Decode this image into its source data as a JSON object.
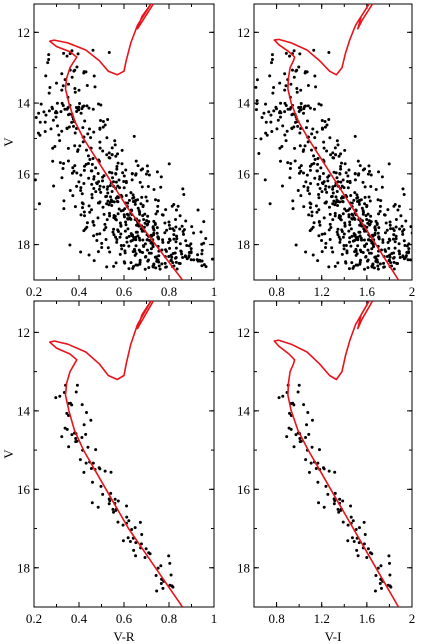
{
  "chart_data": [
    {
      "type": "scatter",
      "panel": "top-left",
      "xlabel": "",
      "ylabel": "V",
      "xlim": [
        0.2,
        1.0
      ],
      "ylim": [
        19,
        11.2
      ],
      "y_inverted": true,
      "xticks": [
        "0.2",
        "0.4",
        "0.6",
        "0.8",
        "1"
      ],
      "yticks": [
        "12",
        "14",
        "16",
        "18"
      ],
      "isochrone": [
        [
          0.86,
          19.0
        ],
        [
          0.8,
          18.5
        ],
        [
          0.74,
          18.0
        ],
        [
          0.68,
          17.5
        ],
        [
          0.62,
          17.0
        ],
        [
          0.57,
          16.5
        ],
        [
          0.52,
          16.0
        ],
        [
          0.47,
          15.5
        ],
        [
          0.42,
          15.0
        ],
        [
          0.38,
          14.5
        ],
        [
          0.355,
          14.0
        ],
        [
          0.34,
          13.6
        ],
        [
          0.345,
          13.3
        ],
        [
          0.36,
          13.0
        ],
        [
          0.38,
          12.8
        ],
        [
          0.39,
          12.7
        ],
        [
          0.36,
          12.55
        ],
        [
          0.3,
          12.4
        ],
        [
          0.27,
          12.25
        ],
        [
          0.29,
          12.22
        ],
        [
          0.35,
          12.3
        ],
        [
          0.43,
          12.5
        ],
        [
          0.49,
          12.8
        ],
        [
          0.53,
          13.1
        ],
        [
          0.57,
          13.2
        ],
        [
          0.6,
          13.1
        ],
        [
          0.61,
          12.8
        ],
        [
          0.63,
          12.3
        ],
        [
          0.66,
          11.8
        ],
        [
          0.7,
          11.4
        ],
        [
          0.72,
          11.2
        ],
        [
          0.68,
          11.55
        ],
        [
          0.66,
          11.9
        ],
        [
          0.68,
          11.7
        ],
        [
          0.71,
          11.4
        ],
        [
          0.73,
          11.2
        ]
      ]
    },
    {
      "type": "scatter",
      "panel": "top-right",
      "xlabel": "",
      "ylabel": "",
      "xlim": [
        0.6,
        2.0
      ],
      "ylim": [
        19,
        11.2
      ],
      "y_inverted": true,
      "xticks": [
        "0.8",
        "1.2",
        "1.6",
        "2"
      ],
      "yticks": [
        "12",
        "14",
        "16",
        "18"
      ],
      "isochrone": [
        [
          1.88,
          19.0
        ],
        [
          1.78,
          18.5
        ],
        [
          1.68,
          18.0
        ],
        [
          1.58,
          17.5
        ],
        [
          1.48,
          17.0
        ],
        [
          1.38,
          16.5
        ],
        [
          1.28,
          16.0
        ],
        [
          1.18,
          15.5
        ],
        [
          1.08,
          15.0
        ],
        [
          0.99,
          14.5
        ],
        [
          0.93,
          14.0
        ],
        [
          0.9,
          13.6
        ],
        [
          0.905,
          13.3
        ],
        [
          0.92,
          13.0
        ],
        [
          0.95,
          12.8
        ],
        [
          0.96,
          12.7
        ],
        [
          0.91,
          12.55
        ],
        [
          0.82,
          12.35
        ],
        [
          0.78,
          12.22
        ],
        [
          0.82,
          12.2
        ],
        [
          0.93,
          12.3
        ],
        [
          1.07,
          12.5
        ],
        [
          1.18,
          12.8
        ],
        [
          1.27,
          13.1
        ],
        [
          1.33,
          13.2
        ],
        [
          1.38,
          13.0
        ],
        [
          1.41,
          12.6
        ],
        [
          1.45,
          12.2
        ],
        [
          1.5,
          11.8
        ],
        [
          1.57,
          11.45
        ],
        [
          1.62,
          11.2
        ],
        [
          1.55,
          11.55
        ],
        [
          1.52,
          11.9
        ],
        [
          1.56,
          11.65
        ],
        [
          1.61,
          11.4
        ],
        [
          1.65,
          11.2
        ]
      ]
    },
    {
      "type": "scatter",
      "panel": "bottom-left",
      "xlabel": "V-R",
      "ylabel": "V",
      "xlim": [
        0.2,
        1.0
      ],
      "ylim": [
        19,
        11.2
      ],
      "y_inverted": true,
      "xticks": [
        "0.2",
        "0.4",
        "0.6",
        "0.8",
        "1"
      ],
      "yticks": [
        "12",
        "14",
        "16",
        "18"
      ],
      "isochrone": [
        [
          0.86,
          19.0
        ],
        [
          0.8,
          18.5
        ],
        [
          0.74,
          18.0
        ],
        [
          0.68,
          17.5
        ],
        [
          0.62,
          17.0
        ],
        [
          0.57,
          16.5
        ],
        [
          0.52,
          16.0
        ],
        [
          0.47,
          15.5
        ],
        [
          0.42,
          15.0
        ],
        [
          0.38,
          14.5
        ],
        [
          0.355,
          14.0
        ],
        [
          0.34,
          13.6
        ],
        [
          0.345,
          13.3
        ],
        [
          0.36,
          13.0
        ],
        [
          0.38,
          12.8
        ],
        [
          0.39,
          12.7
        ],
        [
          0.36,
          12.55
        ],
        [
          0.3,
          12.4
        ],
        [
          0.27,
          12.25
        ],
        [
          0.29,
          12.22
        ],
        [
          0.35,
          12.3
        ],
        [
          0.43,
          12.5
        ],
        [
          0.49,
          12.8
        ],
        [
          0.53,
          13.1
        ],
        [
          0.57,
          13.2
        ],
        [
          0.6,
          13.1
        ],
        [
          0.61,
          12.8
        ],
        [
          0.63,
          12.3
        ],
        [
          0.66,
          11.8
        ],
        [
          0.7,
          11.4
        ],
        [
          0.72,
          11.2
        ],
        [
          0.68,
          11.55
        ],
        [
          0.66,
          11.9
        ],
        [
          0.68,
          11.7
        ],
        [
          0.71,
          11.4
        ],
        [
          0.73,
          11.2
        ]
      ]
    },
    {
      "type": "scatter",
      "panel": "bottom-right",
      "xlabel": "V-I",
      "ylabel": "",
      "xlim": [
        0.6,
        2.0
      ],
      "ylim": [
        19,
        11.2
      ],
      "y_inverted": true,
      "xticks": [
        "0.8",
        "1.2",
        "1.6",
        "2"
      ],
      "yticks": [
        "12",
        "14",
        "16",
        "18"
      ],
      "isochrone": [
        [
          1.88,
          19.0
        ],
        [
          1.78,
          18.5
        ],
        [
          1.68,
          18.0
        ],
        [
          1.58,
          17.5
        ],
        [
          1.48,
          17.0
        ],
        [
          1.38,
          16.5
        ],
        [
          1.28,
          16.0
        ],
        [
          1.18,
          15.5
        ],
        [
          1.08,
          15.0
        ],
        [
          0.99,
          14.5
        ],
        [
          0.93,
          14.0
        ],
        [
          0.9,
          13.6
        ],
        [
          0.905,
          13.3
        ],
        [
          0.92,
          13.0
        ],
        [
          0.95,
          12.8
        ],
        [
          0.96,
          12.7
        ],
        [
          0.91,
          12.55
        ],
        [
          0.82,
          12.35
        ],
        [
          0.78,
          12.22
        ],
        [
          0.82,
          12.2
        ],
        [
          0.93,
          12.3
        ],
        [
          1.07,
          12.5
        ],
        [
          1.18,
          12.8
        ],
        [
          1.27,
          13.1
        ],
        [
          1.33,
          13.2
        ],
        [
          1.38,
          13.0
        ],
        [
          1.41,
          12.6
        ],
        [
          1.45,
          12.2
        ],
        [
          1.5,
          11.8
        ],
        [
          1.57,
          11.45
        ],
        [
          1.62,
          11.2
        ],
        [
          1.55,
          11.55
        ],
        [
          1.52,
          11.9
        ],
        [
          1.56,
          11.65
        ],
        [
          1.61,
          11.4
        ],
        [
          1.65,
          11.2
        ]
      ]
    }
  ],
  "colors": {
    "isochrone": "#e8141c",
    "points": "#000000",
    "axes": "#000000"
  }
}
